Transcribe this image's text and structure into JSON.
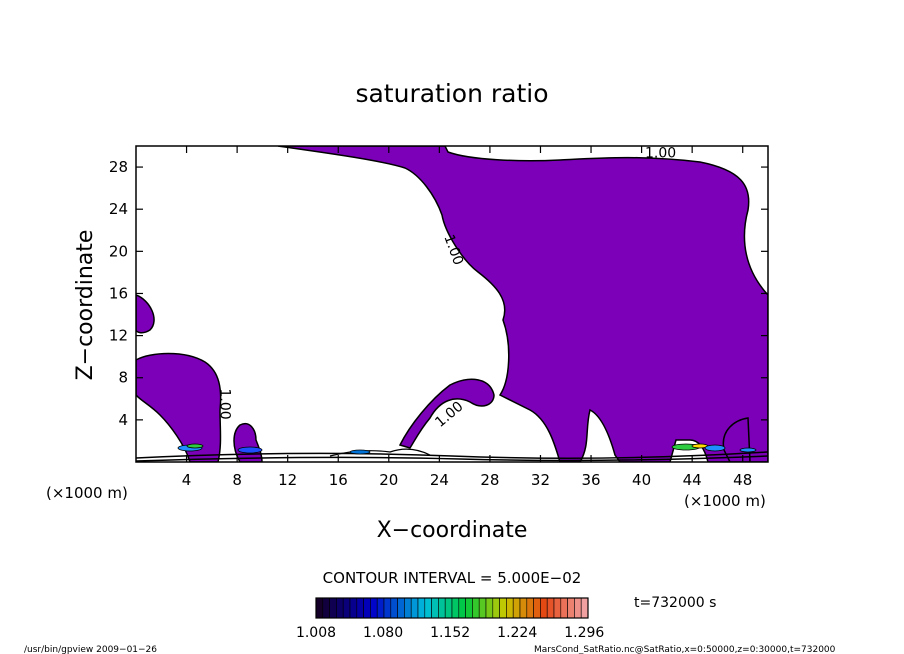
{
  "chart_data": {
    "type": "contour",
    "title": "saturation ratio",
    "xlabel": "X−coordinate",
    "ylabel": "Z−coordinate",
    "x_unit_label": "(×1000 m)",
    "z_unit_label": "(×1000 m)",
    "xlim": [
      0,
      50
    ],
    "ylim": [
      0,
      30
    ],
    "x_ticks": [
      4,
      8,
      12,
      16,
      20,
      24,
      28,
      32,
      36,
      40,
      44,
      48
    ],
    "y_ticks": [
      4,
      8,
      12,
      16,
      20,
      24,
      28
    ],
    "contour_interval_text": "CONTOUR INTERVAL = 5.000E−02",
    "contour_labels": [
      {
        "text": "1.00",
        "x": 41.5,
        "z": 28.9
      },
      {
        "text": "1.00",
        "x": 24.8,
        "z": 20.0
      },
      {
        "text": "1.00",
        "x": 6.7,
        "z": 5.5
      },
      {
        "text": "1.00",
        "x": 25.0,
        "z": 4.2
      }
    ],
    "colorbar_ticks": [
      "1.008",
      "1.080",
      "1.152",
      "1.224",
      "1.296"
    ],
    "colorbar_range": [
      1.008,
      1.3
    ],
    "fill_color": "#7b00b8",
    "time_label": "t=732000 s",
    "footer_left": "/usr/bin/gpview   2009−01−26",
    "footer_right": "MarsCond_SatRatio.nc@SatRatio,x=0:50000,z=0:30000,t=732000"
  }
}
